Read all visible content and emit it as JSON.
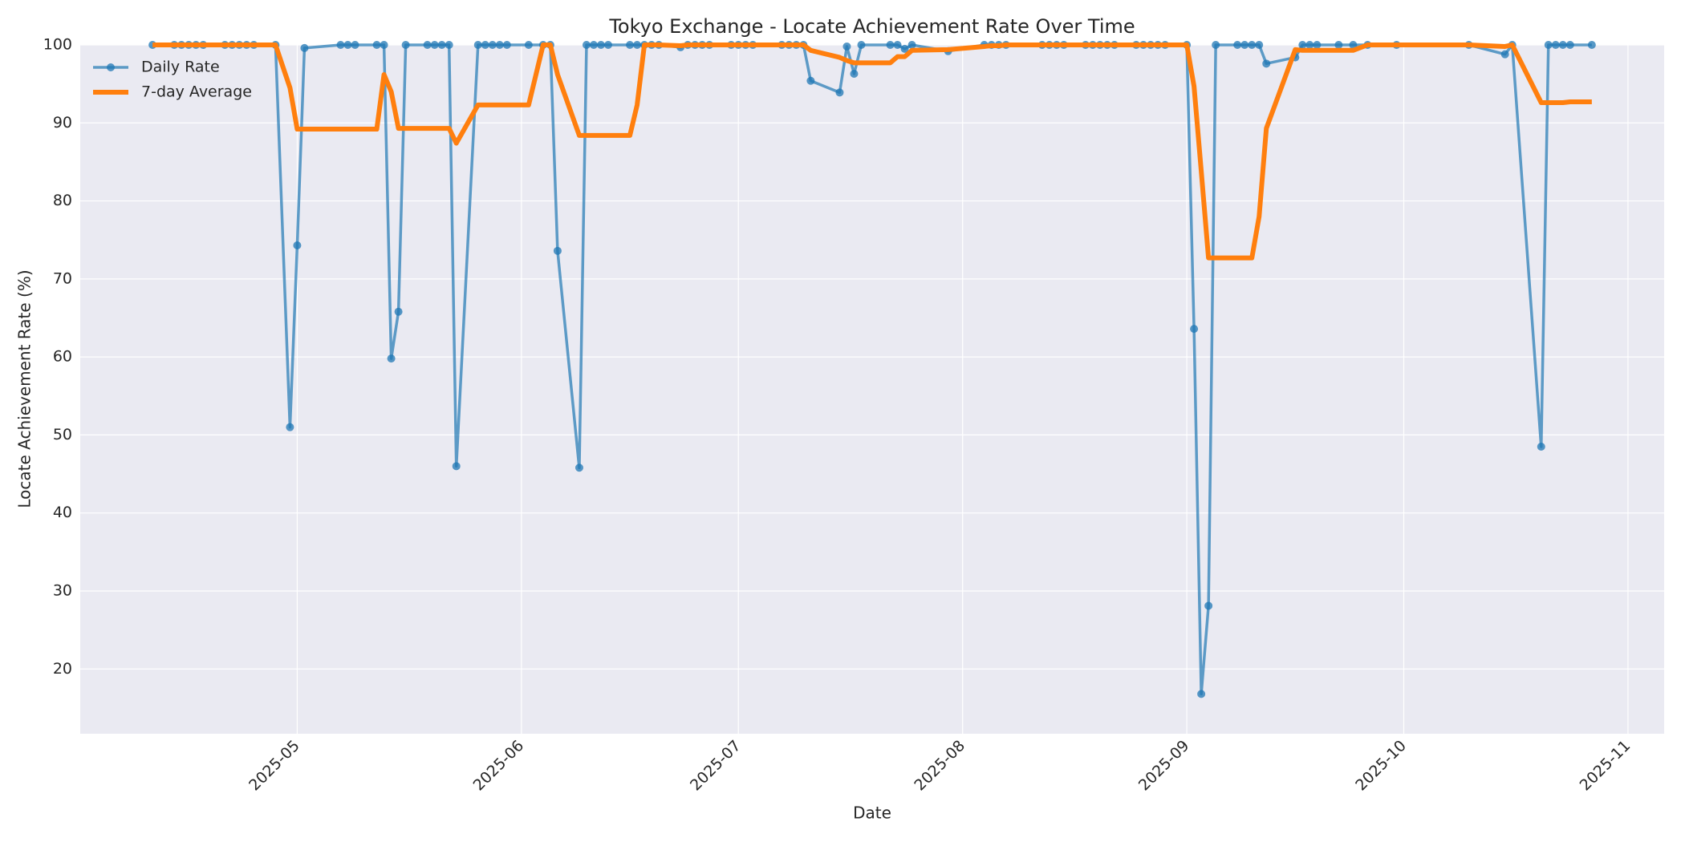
{
  "chart_data": {
    "type": "line",
    "title": "Tokyo Exchange - Locate Achievement Rate Over Time",
    "x_label": "Date",
    "y_label": "Locate Achievement Rate (%)",
    "x": [
      "2025-04-11",
      "2025-04-14",
      "2025-04-15",
      "2025-04-16",
      "2025-04-17",
      "2025-04-18",
      "2025-04-21",
      "2025-04-22",
      "2025-04-23",
      "2025-04-24",
      "2025-04-25",
      "2025-04-28",
      "2025-04-30",
      "2025-05-01",
      "2025-05-02",
      "2025-05-07",
      "2025-05-08",
      "2025-05-09",
      "2025-05-12",
      "2025-05-13",
      "2025-05-14",
      "2025-05-15",
      "2025-05-16",
      "2025-05-19",
      "2025-05-20",
      "2025-05-21",
      "2025-05-22",
      "2025-05-23",
      "2025-05-26",
      "2025-05-27",
      "2025-05-28",
      "2025-05-29",
      "2025-05-30",
      "2025-06-02",
      "2025-06-04",
      "2025-06-05",
      "2025-06-06",
      "2025-06-09",
      "2025-06-10",
      "2025-06-11",
      "2025-06-12",
      "2025-06-13",
      "2025-06-16",
      "2025-06-17",
      "2025-06-18",
      "2025-06-19",
      "2025-06-20",
      "2025-06-23",
      "2025-06-24",
      "2025-06-25",
      "2025-06-26",
      "2025-06-27",
      "2025-06-30",
      "2025-07-01",
      "2025-07-02",
      "2025-07-03",
      "2025-07-07",
      "2025-07-08",
      "2025-07-09",
      "2025-07-10",
      "2025-07-11",
      "2025-07-15",
      "2025-07-16",
      "2025-07-17",
      "2025-07-18",
      "2025-07-22",
      "2025-07-23",
      "2025-07-24",
      "2025-07-25",
      "2025-07-30",
      "2025-08-04",
      "2025-08-05",
      "2025-08-06",
      "2025-08-07",
      "2025-08-12",
      "2025-08-13",
      "2025-08-14",
      "2025-08-15",
      "2025-08-18",
      "2025-08-19",
      "2025-08-20",
      "2025-08-21",
      "2025-08-22",
      "2025-08-25",
      "2025-08-26",
      "2025-08-27",
      "2025-08-28",
      "2025-08-29",
      "2025-09-01",
      "2025-09-02",
      "2025-09-03",
      "2025-09-04",
      "2025-09-05",
      "2025-09-08",
      "2025-09-09",
      "2025-09-10",
      "2025-09-11",
      "2025-09-12",
      "2025-09-16",
      "2025-09-17",
      "2025-09-18",
      "2025-09-19",
      "2025-09-22",
      "2025-09-24",
      "2025-09-26",
      "2025-09-30",
      "2025-10-10",
      "2025-10-15",
      "2025-10-16",
      "2025-10-20",
      "2025-10-21",
      "2025-10-22",
      "2025-10-23",
      "2025-10-24",
      "2025-10-27"
    ],
    "series": [
      {
        "name": "Daily Rate",
        "color": "#1f77b4",
        "marker": true,
        "values": [
          100,
          100,
          100,
          100,
          100,
          100,
          100,
          100,
          100,
          100,
          100,
          100,
          51,
          74.3,
          99.6,
          100,
          100,
          100,
          100,
          100,
          59.8,
          65.8,
          100,
          100,
          100,
          100,
          100,
          46,
          100,
          100,
          100,
          100,
          100,
          100,
          100,
          100,
          73.6,
          45.8,
          100,
          100,
          100,
          100,
          100,
          100,
          100,
          100,
          100,
          99.7,
          100,
          100,
          100,
          100,
          100,
          100,
          100,
          100,
          100,
          100,
          100,
          100,
          95.4,
          93.9,
          99.8,
          96.3,
          100,
          100,
          100,
          99.5,
          100,
          99.2,
          100,
          100,
          100,
          100,
          100,
          100,
          100,
          100,
          100,
          100,
          100,
          100,
          100,
          100,
          100,
          100,
          100,
          100,
          100,
          63.6,
          16.8,
          28.1,
          100,
          100,
          100,
          100,
          100,
          97.6,
          98.4,
          100,
          100,
          100,
          100,
          100,
          100,
          100,
          100,
          98.8,
          100,
          48.5,
          100,
          100,
          100,
          100,
          100
        ]
      },
      {
        "name": "7-day Average",
        "color": "#ff7f0e",
        "marker": false,
        "values": [
          100,
          100,
          100,
          100,
          100,
          100,
          100,
          100,
          100,
          100,
          100,
          100,
          94.5,
          89.2,
          89.2,
          89.2,
          89.2,
          89.2,
          89.2,
          96.2,
          94,
          89.3,
          89.3,
          89.3,
          89.3,
          89.3,
          89.3,
          87.4,
          92.3,
          92.3,
          92.3,
          92.3,
          92.3,
          92.3,
          100,
          100,
          96.2,
          88.4,
          88.4,
          88.4,
          88.4,
          88.4,
          88.4,
          92.3,
          100,
          100,
          100,
          99.9,
          100,
          100,
          100,
          100,
          100,
          100,
          100,
          100,
          100,
          100,
          100,
          100,
          99.3,
          98.4,
          98,
          97.7,
          97.7,
          97.7,
          98.5,
          98.5,
          99.3,
          99.4,
          99.8,
          99.9,
          99.9,
          100,
          100,
          100,
          100,
          100,
          100,
          100,
          100,
          100,
          100,
          100,
          100,
          100,
          100,
          100,
          100,
          94.7,
          83.8,
          72.7,
          72.7,
          72.7,
          72.7,
          72.7,
          78,
          89.3,
          99.4,
          99.3,
          99.3,
          99.3,
          99.3,
          99.3,
          100,
          100,
          100,
          99.8,
          100,
          92.6,
          92.6,
          92.6,
          92.6,
          92.7,
          92.7
        ]
      }
    ],
    "xlim": [
      "2025-04-01",
      "2025-11-06"
    ],
    "xticks": [
      {
        "value": "2025-05-01",
        "label": "2025-05"
      },
      {
        "value": "2025-06-01",
        "label": "2025-06"
      },
      {
        "value": "2025-07-01",
        "label": "2025-07"
      },
      {
        "value": "2025-08-01",
        "label": "2025-08"
      },
      {
        "value": "2025-09-01",
        "label": "2025-09"
      },
      {
        "value": "2025-10-01",
        "label": "2025-10"
      },
      {
        "value": "2025-11-01",
        "label": "2025-11"
      }
    ],
    "ylim": [
      11.7,
      100
    ],
    "yticks": [
      20,
      30,
      40,
      50,
      60,
      70,
      80,
      90,
      100
    ],
    "grid": true,
    "legend": "upper left"
  }
}
